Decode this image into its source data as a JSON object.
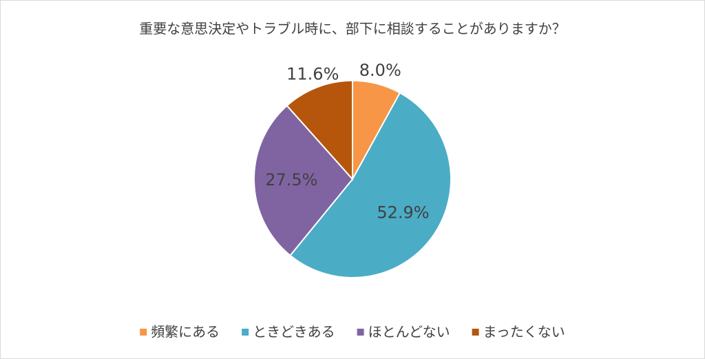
{
  "chart_data": {
    "type": "pie",
    "title": "重要な意思決定やトラブル時に、部下に相談することがありますか？",
    "categories": [
      "頻繁にある",
      "ときどきある",
      "ほとんどない",
      "まったくない"
    ],
    "values": [
      8.0,
      52.9,
      27.5,
      11.6
    ],
    "value_labels": [
      "8.0%",
      "52.9%",
      "27.5%",
      "11.6%"
    ],
    "colors": [
      "#f79646",
      "#4bacc6",
      "#8064a2",
      "#b5560c"
    ],
    "legend": "bottom"
  }
}
